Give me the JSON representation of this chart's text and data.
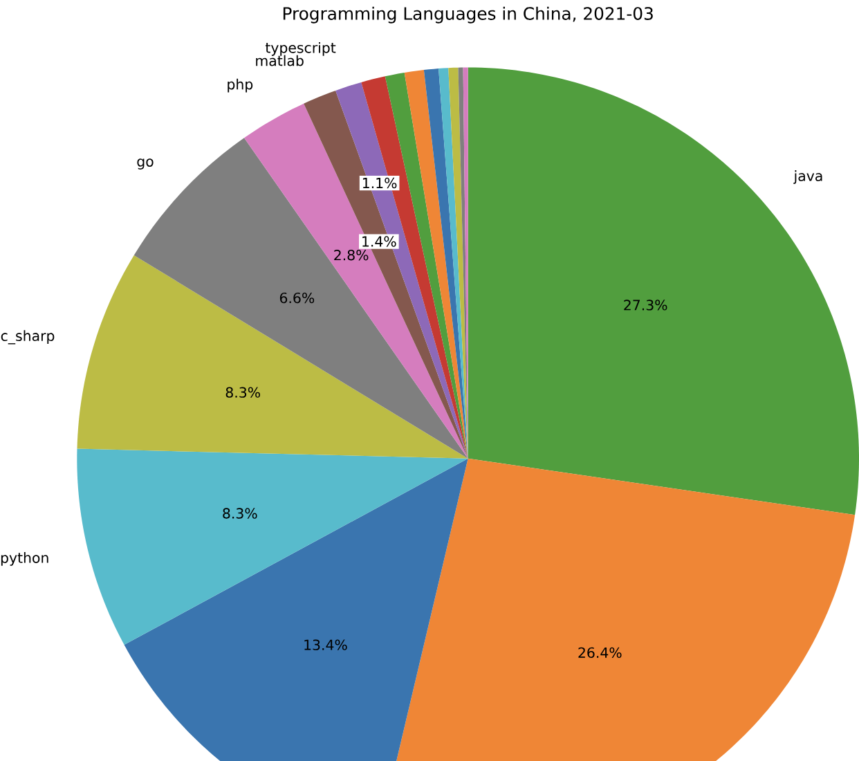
{
  "chart_data": {
    "type": "pie",
    "title": "Programming Languages in China, 2021-03",
    "categories": [
      "java",
      null,
      null,
      "python",
      "c_sharp",
      "go",
      "php",
      "matlab",
      "typescript",
      null,
      null,
      null,
      null,
      null,
      null,
      null,
      null
    ],
    "values": [
      27.3,
      26.4,
      13.4,
      8.3,
      8.3,
      6.6,
      2.8,
      1.4,
      1.1,
      1.0,
      0.8,
      0.8,
      0.6,
      0.4,
      0.4,
      0.2,
      0.2
    ],
    "value_labels": [
      "27.3%",
      "26.4%",
      "13.4%",
      "8.3%",
      "8.3%",
      "6.6%",
      "2.8%",
      "1.4%",
      "1.1%",
      null,
      null,
      null,
      null,
      null,
      null,
      null,
      null
    ],
    "colors": [
      "#519e3e",
      "#ef8636",
      "#3a75af",
      "#58bbcc",
      "#bcbc45",
      "#7f7f7f",
      "#d57dbe",
      "#84584e",
      "#8d69b8",
      "#c53a32",
      "#519e3e",
      "#ef8636",
      "#3a75af",
      "#58bbcc",
      "#bcbc45",
      "#7f7f7f",
      "#d57dbe"
    ]
  }
}
